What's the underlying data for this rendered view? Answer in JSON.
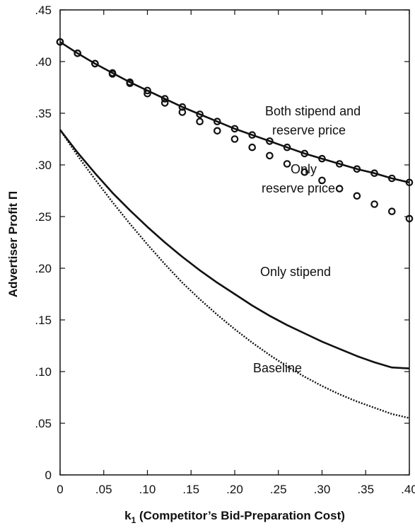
{
  "chart_data": {
    "type": "line",
    "title": "",
    "xlabel": "k",
    "xlabel_sub": "1",
    "xlabel_rest": " (Competitor’s Bid-Preparation Cost)",
    "ylabel": "Advertiser Profit Π",
    "xlim": [
      0,
      0.4
    ],
    "ylim": [
      0,
      0.45
    ],
    "x_ticks": [
      0,
      0.05,
      0.1,
      0.15,
      0.2,
      0.25,
      0.3,
      0.35,
      0.4
    ],
    "x_tick_labels": [
      "0",
      ".05",
      ".10",
      ".15",
      ".20",
      ".25",
      ".30",
      ".35",
      ".40"
    ],
    "y_ticks": [
      0,
      0.05,
      0.1,
      0.15,
      0.2,
      0.25,
      0.3,
      0.35,
      0.4,
      0.45
    ],
    "y_tick_labels": [
      "0",
      ".05",
      ".10",
      ".15",
      ".20",
      ".25",
      ".30",
      ".35",
      ".40",
      ".45"
    ],
    "grid": false,
    "legend": "none",
    "series": [
      {
        "name": "Both stipend and reserve price",
        "style": "solid-line-with-circles",
        "color": "#111111",
        "x": [
          0,
          0.02,
          0.04,
          0.06,
          0.08,
          0.1,
          0.12,
          0.14,
          0.16,
          0.18,
          0.2,
          0.22,
          0.24,
          0.26,
          0.28,
          0.3,
          0.32,
          0.34,
          0.36,
          0.38,
          0.4
        ],
        "y": [
          0.419,
          0.408,
          0.398,
          0.389,
          0.38,
          0.372,
          0.364,
          0.356,
          0.349,
          0.342,
          0.335,
          0.329,
          0.323,
          0.317,
          0.311,
          0.306,
          0.301,
          0.296,
          0.292,
          0.287,
          0.283
        ]
      },
      {
        "name": "Only reserve price",
        "style": "circles",
        "color": "#111111",
        "x": [
          0,
          0.02,
          0.04,
          0.06,
          0.08,
          0.1,
          0.12,
          0.14,
          0.16,
          0.18,
          0.2,
          0.22,
          0.24,
          0.26,
          0.28,
          0.3,
          0.32,
          0.34,
          0.36,
          0.38,
          0.4
        ],
        "y": [
          0.419,
          0.408,
          0.398,
          0.388,
          0.379,
          0.369,
          0.36,
          0.351,
          0.342,
          0.333,
          0.325,
          0.317,
          0.309,
          0.301,
          0.293,
          0.285,
          0.277,
          0.27,
          0.262,
          0.255,
          0.248
        ]
      },
      {
        "name": "Only stipend",
        "style": "solid",
        "color": "#111111",
        "x": [
          0,
          0.02,
          0.04,
          0.06,
          0.08,
          0.1,
          0.12,
          0.14,
          0.16,
          0.18,
          0.2,
          0.22,
          0.24,
          0.26,
          0.28,
          0.3,
          0.32,
          0.34,
          0.36,
          0.38,
          0.4
        ],
        "y": [
          0.334,
          0.312,
          0.292,
          0.273,
          0.256,
          0.24,
          0.225,
          0.211,
          0.198,
          0.186,
          0.175,
          0.164,
          0.154,
          0.145,
          0.137,
          0.129,
          0.122,
          0.115,
          0.109,
          0.104,
          0.103
        ]
      },
      {
        "name": "Baseline",
        "style": "dotted",
        "color": "#111111",
        "x": [
          0,
          0.02,
          0.04,
          0.06,
          0.08,
          0.1,
          0.12,
          0.14,
          0.16,
          0.18,
          0.2,
          0.22,
          0.24,
          0.26,
          0.28,
          0.3,
          0.32,
          0.34,
          0.36,
          0.38,
          0.4
        ],
        "y": [
          0.334,
          0.309,
          0.286,
          0.264,
          0.243,
          0.223,
          0.204,
          0.186,
          0.17,
          0.155,
          0.141,
          0.128,
          0.116,
          0.105,
          0.095,
          0.086,
          0.078,
          0.071,
          0.065,
          0.059,
          0.055
        ]
      }
    ],
    "annotations": [
      {
        "lines": [
          "Both stipend and",
          "reserve price"
        ],
        "series": "Both stipend and reserve price"
      },
      {
        "lines": [
          "Only",
          "reserve price"
        ],
        "series": "Only reserve price"
      },
      {
        "lines": [
          "Only stipend"
        ],
        "series": "Only stipend"
      },
      {
        "lines": [
          "Baseline"
        ],
        "series": "Baseline"
      }
    ]
  }
}
